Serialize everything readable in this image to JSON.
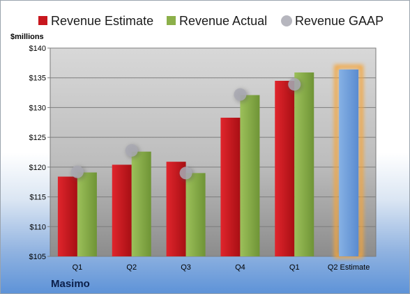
{
  "chart_data": {
    "type": "bar",
    "title": "",
    "ylabel": "$millions",
    "company": "Masimo",
    "categories": [
      "Q1",
      "Q2",
      "Q3",
      "Q4",
      "Q1",
      "Q2 Estimate"
    ],
    "ylim": [
      105,
      140
    ],
    "yticks": [
      "$105",
      "$110",
      "$115",
      "$120",
      "$125",
      "$130",
      "$135",
      "$140"
    ],
    "grid": true,
    "legend_position": "top",
    "series": [
      {
        "name": "Revenue Estimate",
        "type": "bar",
        "color": "#c8171e",
        "values": [
          118.4,
          120.4,
          120.9,
          128.3,
          134.5,
          null
        ]
      },
      {
        "name": "Revenue Actual",
        "type": "bar",
        "color": "#8cb04a",
        "values": [
          119.1,
          122.6,
          119.0,
          132.1,
          135.9,
          136.4
        ]
      },
      {
        "name": "Revenue GAAP",
        "type": "marker",
        "color": "#a9a9b3",
        "values": [
          119.2,
          122.8,
          119.0,
          132.2,
          133.9,
          null
        ]
      }
    ],
    "highlight": {
      "index": 5,
      "bar_color": "#6f9fd9",
      "glow_color": "#f5a53a"
    }
  }
}
